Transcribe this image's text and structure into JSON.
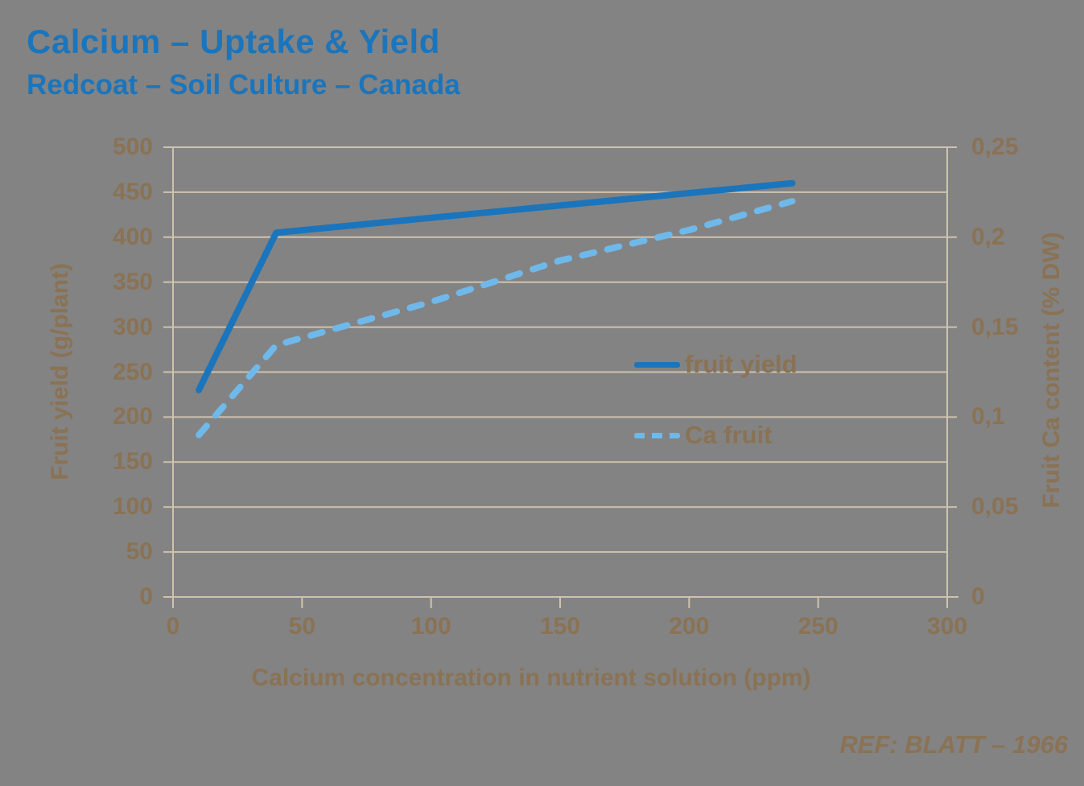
{
  "page": {
    "title": "Calcium – Uptake & Yield",
    "subtitle": "Redcoat – Soil Culture – Canada",
    "reference": "REF: BLATT – 1966"
  },
  "colors": {
    "background": "#838383",
    "title_blue": "#1B75BC",
    "axis_text_brown": "#8A7254",
    "gridline_tan": "#CFC3AF",
    "fruit_yield_line": "#1B75BC",
    "ca_fruit_line": "#6FB8EA"
  },
  "chart_data": {
    "type": "line",
    "title": "Calcium – Uptake & Yield",
    "subtitle": "Redcoat – Soil Culture – Canada",
    "xlabel": "Calcium concentration in nutrient solution (ppm)",
    "ylabel_left": "Fruit yield (g/plant)",
    "ylabel_right": "Fruit Ca content (% DW)",
    "xlim": [
      0,
      300
    ],
    "ylim_left": [
      0,
      500
    ],
    "ylim_right": [
      0,
      0.25
    ],
    "grid": "horizontal gridlines only",
    "legend_position": "center-right inside plot, no frame",
    "x_ticks": [
      {
        "v": 0,
        "label": "0"
      },
      {
        "v": 50,
        "label": "50"
      },
      {
        "v": 100,
        "label": "100"
      },
      {
        "v": 150,
        "label": "150"
      },
      {
        "v": 200,
        "label": "200"
      },
      {
        "v": 250,
        "label": "250"
      },
      {
        "v": 300,
        "label": "300"
      }
    ],
    "y_ticks_left": [
      {
        "v": 0,
        "label": "0"
      },
      {
        "v": 50,
        "label": "50"
      },
      {
        "v": 100,
        "label": "100"
      },
      {
        "v": 150,
        "label": "150"
      },
      {
        "v": 200,
        "label": "200"
      },
      {
        "v": 250,
        "label": "250"
      },
      {
        "v": 300,
        "label": "300"
      },
      {
        "v": 350,
        "label": "350"
      },
      {
        "v": 400,
        "label": "400"
      },
      {
        "v": 450,
        "label": "450"
      },
      {
        "v": 500,
        "label": "500"
      }
    ],
    "y_ticks_right": [
      {
        "v": 0,
        "label": "0"
      },
      {
        "v": 0.05,
        "label": "0,05"
      },
      {
        "v": 0.1,
        "label": "0,1"
      },
      {
        "v": 0.15,
        "label": "0,15"
      },
      {
        "v": 0.2,
        "label": "0,2"
      },
      {
        "v": 0.25,
        "label": "0,25"
      }
    ],
    "series": [
      {
        "name": "fruit yield",
        "axis": "left",
        "line_style": "solid",
        "color": "#1B75BC",
        "points": [
          [
            10,
            230
          ],
          [
            40,
            405
          ],
          [
            240,
            460
          ]
        ]
      },
      {
        "name": "Ca fruit",
        "axis": "right",
        "line_style": "dashed",
        "color": "#6FB8EA",
        "points": [
          [
            10,
            0.09
          ],
          [
            40,
            0.14
          ],
          [
            100,
            0.164
          ],
          [
            150,
            0.187
          ],
          [
            200,
            0.204
          ],
          [
            240,
            0.22
          ]
        ]
      }
    ]
  }
}
